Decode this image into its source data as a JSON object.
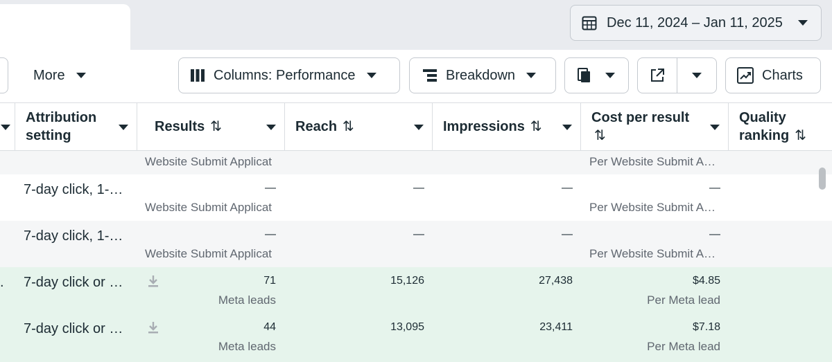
{
  "date_range": {
    "label": "Dec 11, 2024 – Jan 11, 2025",
    "icon": "calendar-icon"
  },
  "toolbar": {
    "more_label": "More",
    "columns_label": "Columns: Performance",
    "breakdown_label": "Breakdown",
    "charts_label": "Charts"
  },
  "columns": {
    "attribution": "Attribution setting",
    "attribution_line1": "Attribution",
    "attribution_line2": "setting",
    "results": "Results",
    "reach": "Reach",
    "impressions": "Impressions",
    "cost_per_result": "Cost per result",
    "quality_ranking_line1": "Quality",
    "quality_ranking_line2": "ranking"
  },
  "sort_glyph": "⇅",
  "partial_row": {
    "results_sub": "Website Submit Applicat",
    "cost_sub": "Per Website Submit A…"
  },
  "rows": [
    {
      "attribution": "7-day click, 1-…",
      "results": "—",
      "results_sub": "Website Submit Applicat",
      "reach": "—",
      "impressions": "—",
      "cost": "—",
      "cost_sub": "Per Website Submit A…"
    },
    {
      "attribution": "7-day click, 1-…",
      "results": "—",
      "results_sub": "Website Submit Applicat",
      "reach": "—",
      "impressions": "—",
      "cost": "—",
      "cost_sub": "Per Website Submit A…"
    },
    {
      "lead": ".",
      "attribution": "7-day click or …",
      "results": "71",
      "results_sub": "Meta leads",
      "reach": "15,126",
      "impressions": "27,438",
      "cost": "$4.85",
      "cost_sub": "Per Meta lead"
    },
    {
      "attribution": "7-day click or …",
      "results": "44",
      "results_sub": "Meta leads",
      "reach": "13,095",
      "impressions": "23,411",
      "cost": "$7.18",
      "cost_sub": "Per Meta lead"
    }
  ],
  "colors": {
    "text": "#1c2b33",
    "muted": "#606770",
    "border": "#c4c9cf",
    "highlight_row": "#e6f4ec"
  }
}
